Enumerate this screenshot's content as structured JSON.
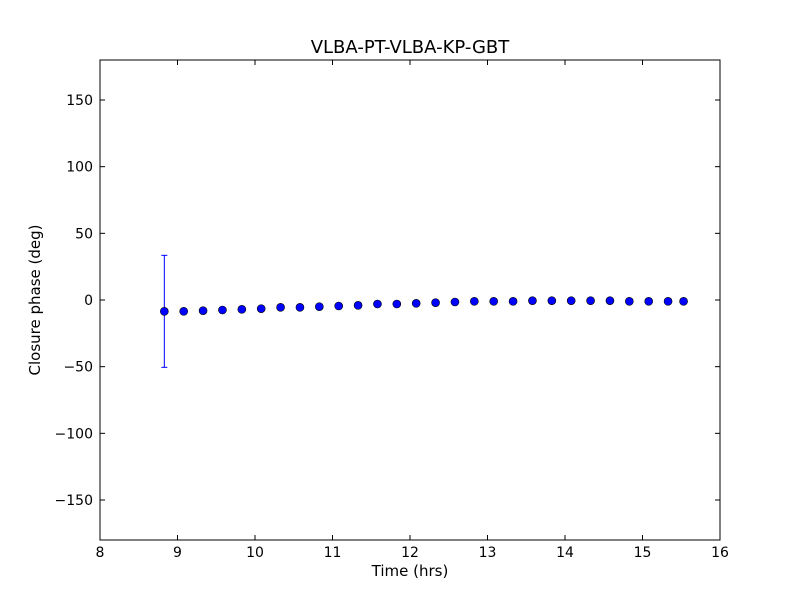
{
  "chart_data": {
    "type": "scatter",
    "title": "VLBA-PT-VLBA-KP-GBT",
    "xlabel": "Time (hrs)",
    "ylabel": "Closure phase (deg)",
    "xlim": [
      8,
      16
    ],
    "ylim": [
      -180,
      180
    ],
    "xticks": [
      8,
      9,
      10,
      11,
      12,
      13,
      14,
      15,
      16
    ],
    "yticks": [
      -150,
      -100,
      -50,
      0,
      50,
      100,
      150
    ],
    "xtick_labels": [
      "8",
      "9",
      "10",
      "11",
      "12",
      "13",
      "14",
      "15",
      "16"
    ],
    "ytick_labels": [
      "−150",
      "−100",
      "−50",
      "0",
      "50",
      "100",
      "150"
    ],
    "grid": false,
    "marker_color": "#0000ff",
    "errorbar_color": "#0000ff",
    "series": [
      {
        "points": [
          {
            "x": 8.83,
            "y": -8.5,
            "err": 42
          },
          {
            "x": 9.08,
            "y": -8.5
          },
          {
            "x": 9.33,
            "y": -8.0
          },
          {
            "x": 9.58,
            "y": -7.5
          },
          {
            "x": 9.83,
            "y": -7.0
          },
          {
            "x": 10.08,
            "y": -6.5
          },
          {
            "x": 10.33,
            "y": -5.5
          },
          {
            "x": 10.58,
            "y": -5.5
          },
          {
            "x": 10.83,
            "y": -5.0
          },
          {
            "x": 11.08,
            "y": -4.5
          },
          {
            "x": 11.33,
            "y": -4.0
          },
          {
            "x": 11.58,
            "y": -3.0
          },
          {
            "x": 11.83,
            "y": -3.0
          },
          {
            "x": 12.08,
            "y": -2.5
          },
          {
            "x": 12.33,
            "y": -2.0
          },
          {
            "x": 12.58,
            "y": -1.5
          },
          {
            "x": 12.83,
            "y": -1.0
          },
          {
            "x": 13.08,
            "y": -1.0
          },
          {
            "x": 13.33,
            "y": -1.0
          },
          {
            "x": 13.58,
            "y": -0.5
          },
          {
            "x": 13.83,
            "y": -0.5
          },
          {
            "x": 14.08,
            "y": -0.5
          },
          {
            "x": 14.33,
            "y": -0.5
          },
          {
            "x": 14.58,
            "y": -0.5
          },
          {
            "x": 14.83,
            "y": -1.0
          },
          {
            "x": 15.08,
            "y": -1.0
          },
          {
            "x": 15.33,
            "y": -1.0
          },
          {
            "x": 15.53,
            "y": -1.0
          }
        ]
      }
    ]
  }
}
